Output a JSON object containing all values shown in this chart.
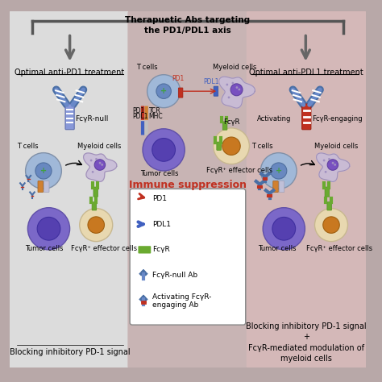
{
  "title": "Therapuetic Abs targeting\nthe PD1/PDL1 axis",
  "panel_left_title": "Optimal anti-PD1 treatment",
  "panel_right_title": "Optimal anti-PDL1 treatment",
  "panel_left_bottom": "Blocking inhibitory PD-1 signal",
  "panel_right_bottom": "Blocking inhibitory PD-1 signal\n+\nFcγR-mediated modulation of\nmyeloid cells",
  "immune_suppression": "Immune suppression",
  "legend_items": [
    "PD1",
    "PDL1",
    "FcγR",
    "FcγR-null Ab",
    "Activating FcγR-\nengaging Ab"
  ],
  "bg_left": "#e8e8e8",
  "bg_center": "#c8b8b8",
  "bg_right": "#d4b8b8",
  "ab_blue": "#4a6fa5",
  "ab_red": "#c0392b",
  "cell_tumor": "#7b68c8",
  "cell_tcell": "#a0b8d8",
  "cell_myeloid": "#c8c0d8",
  "cell_effector": "#e8d8b0",
  "cell_effector_inner": "#c87820",
  "fcgr_green": "#6aaa30",
  "pd1_red": "#c03020",
  "pdl1_blue": "#4060c0",
  "receptor_orange": "#d08030"
}
